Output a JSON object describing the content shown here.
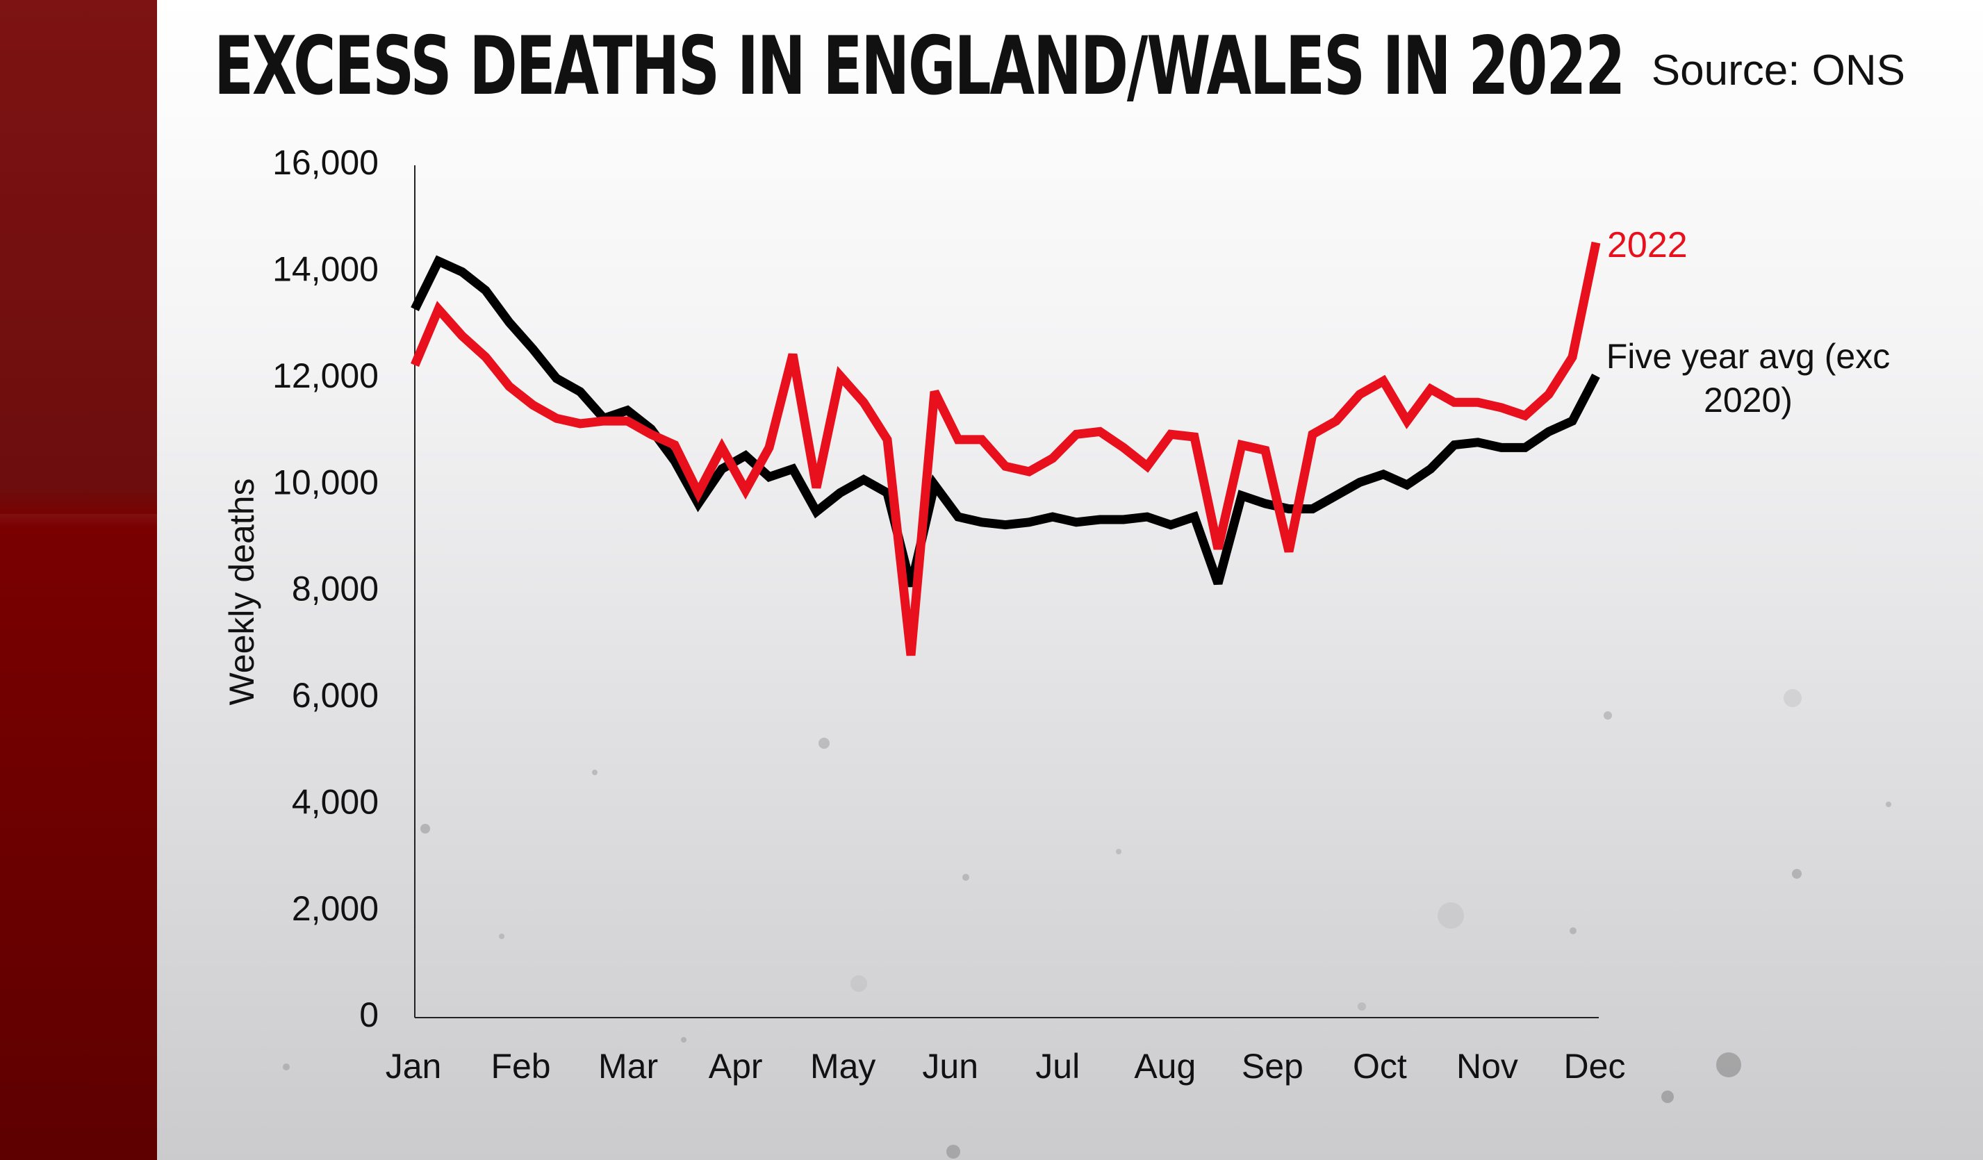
{
  "header": {
    "title": "EXCESS DEATHS IN ENGLAND/WALES IN 2022",
    "source": "Source: ONS"
  },
  "chart_data": {
    "type": "line",
    "title": "EXCESS DEATHS IN ENGLAND/WALES IN 2022",
    "ylabel": "Weekly deaths",
    "xlabel": "",
    "ylim": [
      0,
      16000
    ],
    "y_ticks": [
      0,
      2000,
      4000,
      6000,
      8000,
      10000,
      12000,
      14000,
      16000
    ],
    "y_tick_labels": [
      "0",
      "2,000",
      "4,000",
      "6,000",
      "8,000",
      "10,000",
      "12,000",
      "14,000",
      "16,000"
    ],
    "months": [
      "Jan",
      "Feb",
      "Mar",
      "Apr",
      "May",
      "Jun",
      "Jul",
      "Aug",
      "Sep",
      "Oct",
      "Nov",
      "Dec"
    ],
    "grid": false,
    "series": [
      {
        "name": "2022",
        "label": "2022",
        "color": "#e8101c",
        "values": [
          12250,
          13300,
          12800,
          12400,
          11850,
          11500,
          11250,
          11150,
          11200,
          11200,
          10950,
          10750,
          9850,
          10700,
          9900,
          10700,
          12450,
          9950,
          12050,
          11550,
          10850,
          6800,
          11750,
          10850,
          10850,
          10350,
          10250,
          10500,
          10950,
          11000,
          10700,
          10350,
          10950,
          10900,
          8800,
          10750,
          10650,
          8750,
          10950,
          11200,
          11700,
          11950,
          11200,
          11800,
          11550,
          11550,
          11450,
          11300,
          11700,
          12400,
          14550
        ]
      },
      {
        "name": "Five year avg (exc 2020)",
        "label_line1": "Five year avg (exc",
        "label_line2": "2020)",
        "color": "#000000",
        "values": [
          13300,
          14200,
          14000,
          13650,
          13050,
          12550,
          12000,
          11750,
          11250,
          11400,
          11050,
          10450,
          9650,
          10300,
          10550,
          10150,
          10300,
          9500,
          9850,
          10100,
          9850,
          8100,
          10000,
          9400,
          9300,
          9250,
          9300,
          9400,
          9300,
          9350,
          9350,
          9400,
          9250,
          9400,
          8150,
          9800,
          9650,
          9550,
          9550,
          9800,
          10050,
          10200,
          10000,
          10300,
          10750,
          10800,
          10700,
          10700,
          11000,
          11200,
          12050
        ]
      }
    ]
  }
}
